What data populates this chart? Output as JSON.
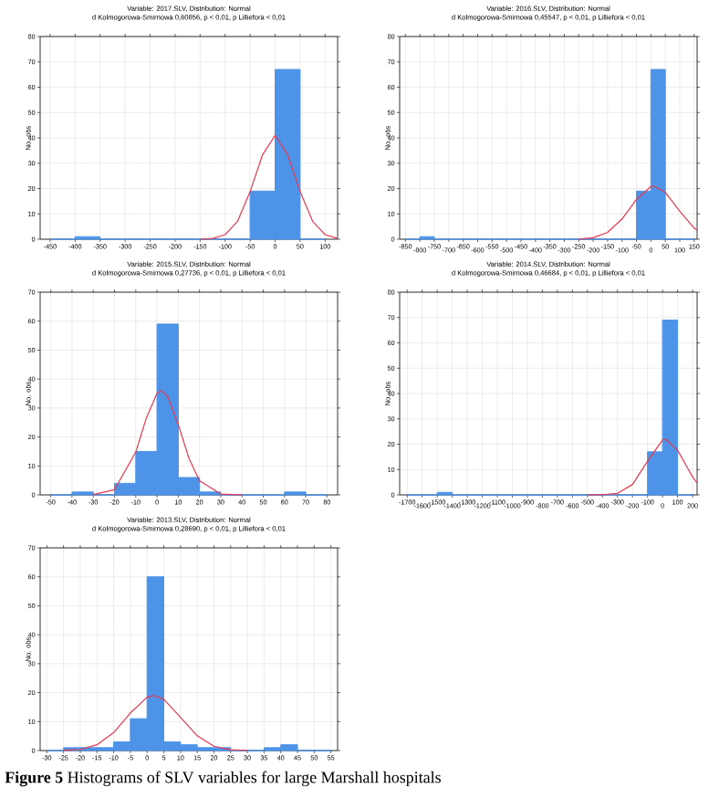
{
  "chart_data": [
    {
      "type": "histogram",
      "title": "Variable: 2017.SLV, Distribution: Normal",
      "subtitle": "d Kolmogorowa-Smirnowa 0,60856, p < 0,01, p Lilliefora < 0,01",
      "ylabel": "No. obs",
      "grid": true,
      "xlim": [
        -470,
        125
      ],
      "ylim": [
        0,
        80
      ],
      "xticks": [
        -450,
        -400,
        -350,
        -300,
        -250,
        -200,
        -150,
        -100,
        -50,
        0,
        50,
        100
      ],
      "yticks": [
        0,
        10,
        20,
        30,
        40,
        50,
        60,
        70,
        80
      ],
      "series": [
        {
          "type": "histogram",
          "color": "#4d94e8",
          "bins": [
            -450,
            -400,
            -350,
            -300,
            -250,
            -200,
            -150,
            -100,
            -50,
            0,
            50,
            100
          ],
          "values": [
            0,
            1,
            0,
            0,
            0,
            0,
            0,
            0,
            19,
            67,
            0
          ]
        },
        {
          "type": "line",
          "color": "#e8384f",
          "x": [
            -150,
            -125,
            -100,
            -75,
            -50,
            -25,
            0,
            25,
            50,
            75,
            100,
            125
          ],
          "values": [
            0,
            0.3,
            1.8,
            7.1,
            18.8,
            33.4,
            41,
            33.4,
            18.8,
            7.1,
            1.8,
            0.3
          ]
        }
      ]
    },
    {
      "type": "histogram",
      "title": "Variable: 2016.SLV, Distribution: Normal",
      "subtitle": "d Kolmogorowa-Smirnowa 0,45547, p < 0,01, p Lilliefora < 0,01",
      "ylabel": "No. obs",
      "grid": true,
      "xlim": [
        -870,
        160
      ],
      "ylim": [
        0,
        80
      ],
      "xticks": [
        -850,
        -800,
        -750,
        -700,
        -650,
        -600,
        -550,
        -500,
        -450,
        -400,
        -350,
        -300,
        -250,
        -200,
        -150,
        -100,
        -50,
        0,
        50,
        100,
        150
      ],
      "yticks": [
        0,
        10,
        20,
        30,
        40,
        50,
        60,
        70,
        80
      ],
      "series": [
        {
          "type": "histogram",
          "color": "#4d94e8",
          "bins": [
            -850,
            -800,
            -750,
            -700,
            -650,
            -600,
            -550,
            -500,
            -450,
            -400,
            -350,
            -300,
            -250,
            -200,
            -150,
            -100,
            -50,
            0,
            50,
            100,
            150
          ],
          "values": [
            0,
            1,
            0,
            0,
            0,
            0,
            0,
            0,
            0,
            0,
            0,
            0,
            0,
            0,
            0,
            0,
            19,
            67,
            0,
            0
          ]
        },
        {
          "type": "line",
          "color": "#e8384f",
          "x": [
            -250,
            -200,
            -150,
            -100,
            -50,
            0,
            10,
            50,
            100,
            150,
            160
          ],
          "values": [
            0.1,
            0.6,
            2.7,
            8,
            15.7,
            20.8,
            21,
            18.5,
            11,
            4.4,
            3.5
          ]
        }
      ]
    },
    {
      "type": "histogram",
      "title": "Variable: 2015.SLV, Distribution: Normal",
      "subtitle": "d Kolmogorowa-Smirnowa 0,27736, p < 0,01, p Lilliefora < 0,01",
      "ylabel": "No. obs",
      "grid": true,
      "xlim": [
        -55,
        85
      ],
      "ylim": [
        0,
        70
      ],
      "xticks": [
        -50,
        -40,
        -30,
        -20,
        -10,
        0,
        10,
        20,
        30,
        40,
        50,
        60,
        70,
        80
      ],
      "yticks": [
        0,
        10,
        20,
        30,
        40,
        50,
        60,
        70
      ],
      "series": [
        {
          "type": "histogram",
          "color": "#4d94e8",
          "bins": [
            -50,
            -40,
            -30,
            -20,
            -10,
            0,
            10,
            20,
            30,
            40,
            50,
            60,
            70,
            80
          ],
          "values": [
            0,
            1,
            0,
            4,
            15,
            59,
            6,
            1,
            0,
            0,
            0,
            1,
            0
          ]
        },
        {
          "type": "line",
          "color": "#e8384f",
          "x": [
            -30,
            -20,
            -10,
            -5,
            0,
            2,
            5,
            10,
            15,
            20,
            30,
            40
          ],
          "values": [
            0.1,
            1.8,
            14.8,
            26.6,
            35.1,
            36,
            34,
            24.3,
            12.7,
            4.9,
            0.3,
            0
          ]
        }
      ]
    },
    {
      "type": "histogram",
      "title": "Variable: 2014.SLV, Distribution: Normal",
      "subtitle": "d Kolmogorowa-Smirnowa 0,46684, p < 0,01, p Lilliefora < 0,01",
      "ylabel": "No. obs",
      "grid": true,
      "xlim": [
        -1750,
        230
      ],
      "ylim": [
        0,
        80
      ],
      "xticks": [
        -1700,
        -1600,
        -1500,
        -1400,
        -1300,
        -1200,
        -1100,
        -1000,
        -900,
        -800,
        -700,
        -600,
        -500,
        -400,
        -300,
        -200,
        -100,
        0,
        100,
        200
      ],
      "yticks": [
        0,
        10,
        20,
        30,
        40,
        50,
        60,
        70,
        80
      ],
      "series": [
        {
          "type": "histogram",
          "color": "#4d94e8",
          "bins": [
            -1700,
            -1600,
            -1500,
            -1400,
            -1300,
            -1200,
            -1100,
            -1000,
            -900,
            -800,
            -700,
            -600,
            -500,
            -400,
            -300,
            -200,
            -100,
            0,
            100,
            200
          ],
          "values": [
            0,
            0,
            1,
            0,
            0,
            0,
            0,
            0,
            0,
            0,
            0,
            0,
            0,
            0,
            0,
            0,
            17,
            69,
            0
          ]
        },
        {
          "type": "line",
          "color": "#e8384f",
          "x": [
            -500,
            -400,
            -300,
            -200,
            -100,
            0,
            20,
            100,
            200,
            230
          ],
          "values": [
            0,
            0.1,
            0.6,
            4.1,
            13.3,
            21.7,
            22,
            17.6,
            7.1,
            4.7
          ]
        }
      ]
    },
    {
      "type": "histogram",
      "title": "Variable: 2013.SLV, Distribution: Normal",
      "subtitle": "d Kolmogorowa-Smirnowa 0,28690, p < 0,01, p Lilliefora < 0,01",
      "ylabel": "No. obs",
      "grid": true,
      "xlim": [
        -32,
        57
      ],
      "ylim": [
        0,
        70
      ],
      "xticks": [
        -30,
        -25,
        -20,
        -15,
        -10,
        -5,
        0,
        5,
        10,
        15,
        20,
        25,
        30,
        35,
        40,
        45,
        50,
        55
      ],
      "yticks": [
        0,
        10,
        20,
        30,
        40,
        50,
        60,
        70
      ],
      "annotations": [
        "**Figure 5** Histograms of SLV variables for large Marshall hospitals"
      ],
      "series": [
        {
          "type": "histogram",
          "color": "#4d94e8",
          "bins": [
            -30,
            -25,
            -20,
            -15,
            -10,
            -5,
            0,
            5,
            10,
            15,
            20,
            25,
            30,
            35,
            40,
            45,
            50,
            55
          ],
          "values": [
            0,
            1,
            1,
            1,
            3,
            11,
            60,
            3,
            2,
            1,
            1,
            0,
            0,
            1,
            2,
            0,
            0
          ]
        },
        {
          "type": "line",
          "color": "#e8384f",
          "x": [
            -25,
            -20,
            -15,
            -10,
            -5,
            0,
            2,
            5,
            10,
            15,
            20,
            25,
            30
          ],
          "values": [
            0.1,
            0.4,
            2,
            6.2,
            13,
            18.4,
            19,
            17.7,
            11.5,
            5.1,
            1.5,
            0.3,
            0
          ]
        }
      ]
    }
  ]
}
